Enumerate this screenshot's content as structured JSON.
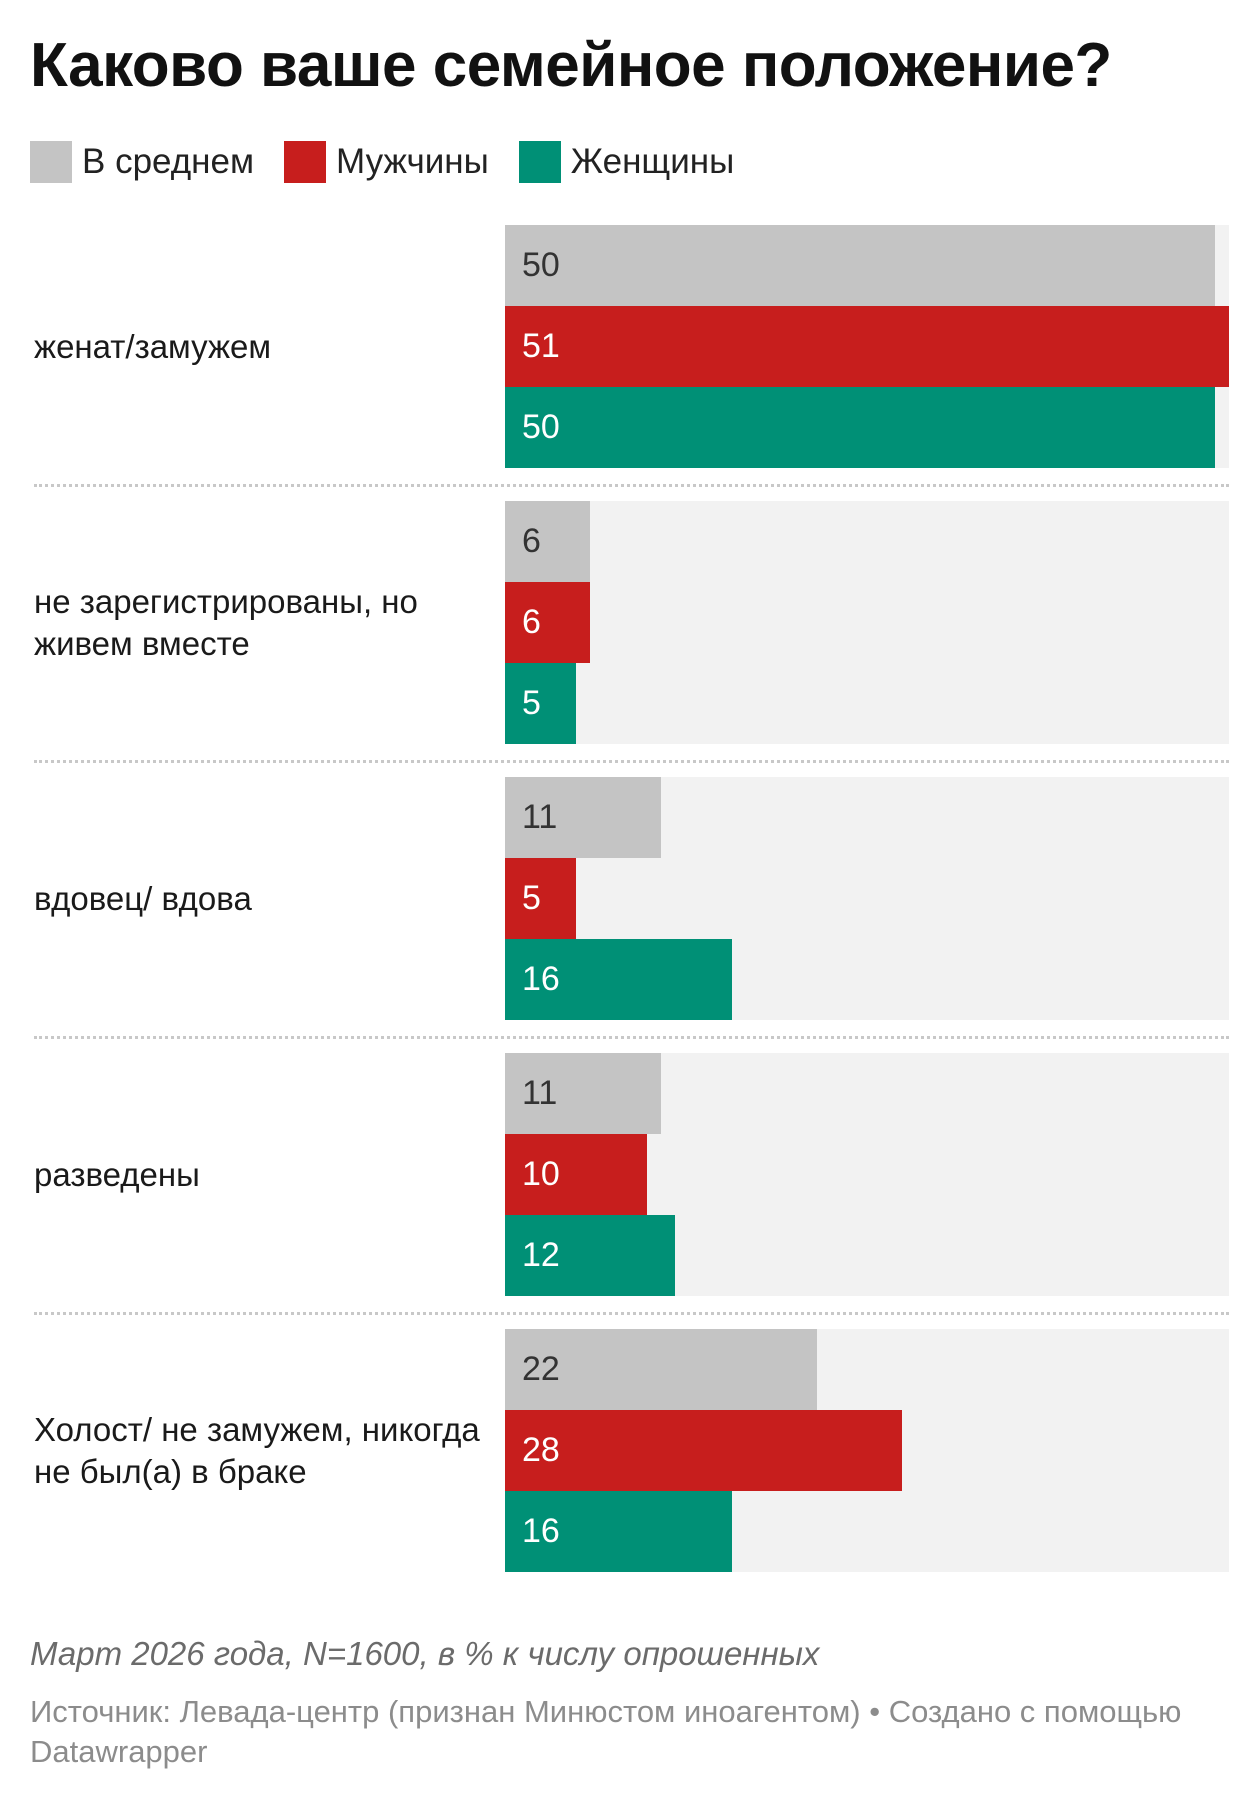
{
  "chart_data": {
    "type": "bar",
    "orientation": "horizontal",
    "title": "Каково ваше семейное положение?",
    "categories": [
      "женат/замужем",
      "не зарегистрированы, но живем вместе",
      "вдовец/ вдова",
      "разведены",
      "Холост/ не замужем, никогда не был(а) в браке"
    ],
    "series": [
      {
        "name": "В среднем",
        "color": "#c4c4c4",
        "label_color": "#333333",
        "values": [
          50,
          6,
          11,
          11,
          22
        ]
      },
      {
        "name": "Мужчины",
        "color": "#c71e1d",
        "label_color": "#ffffff",
        "values": [
          51,
          6,
          5,
          10,
          28
        ]
      },
      {
        "name": "Женщины",
        "color": "#009076",
        "label_color": "#ffffff",
        "values": [
          50,
          5,
          16,
          12,
          16
        ]
      }
    ],
    "xlim": [
      0,
      51
    ],
    "legend_position": "top-left",
    "grid": false,
    "notes": "Март 2026 года, N=1600, в % к числу опрошенных",
    "source": "Источник: Левада-центр (признан Минюстом иноагентом) • Создано с помощью Datawrapper"
  }
}
